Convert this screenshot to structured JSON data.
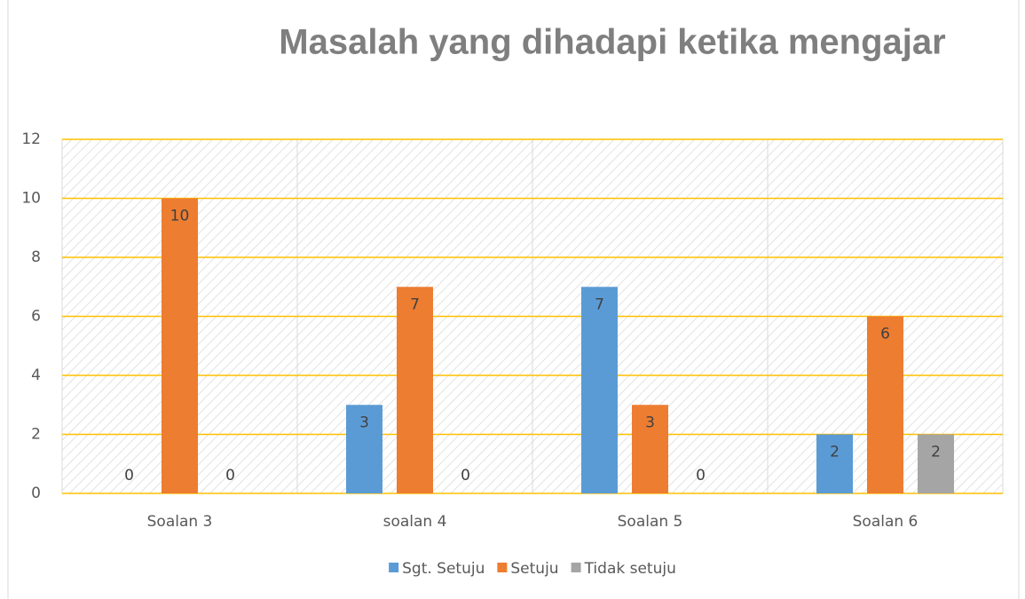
{
  "chart_data": {
    "type": "bar",
    "title": "Masalah yang dihadapi ketika mengajar",
    "categories": [
      "Soalan 3",
      "soalan 4",
      "Soalan 5",
      "Soalan 6"
    ],
    "series": [
      {
        "name": "Sgt. Setuju",
        "color": "#5b9bd5",
        "values": [
          0,
          3,
          7,
          2
        ]
      },
      {
        "name": "Setuju",
        "color": "#ed7d31",
        "values": [
          10,
          7,
          3,
          6
        ]
      },
      {
        "name": "Tidak setuju",
        "color": "#a5a5a5",
        "values": [
          0,
          0,
          0,
          2
        ]
      }
    ],
    "ylim": [
      0,
      12
    ],
    "yticks": [
      0,
      2,
      4,
      6,
      8,
      10,
      12
    ],
    "grid": true,
    "grid_color": "#ffc000",
    "legend": "bottom"
  }
}
